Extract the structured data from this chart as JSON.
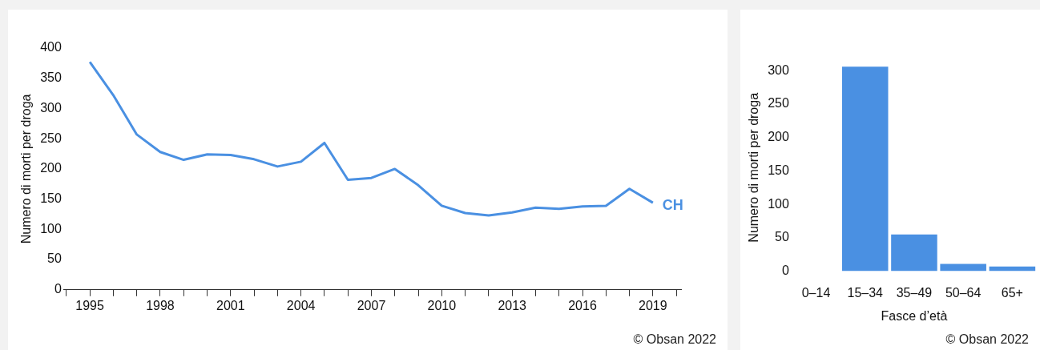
{
  "chart_data": [
    {
      "type": "line",
      "ylabel": "Numero di morti per droga",
      "x": [
        1995,
        1996,
        1997,
        1998,
        1999,
        2000,
        2001,
        2002,
        2003,
        2004,
        2005,
        2006,
        2007,
        2008,
        2009,
        2010,
        2011,
        2012,
        2013,
        2014,
        2015,
        2016,
        2017,
        2018,
        2019
      ],
      "series": [
        {
          "name": "CH",
          "color": "#4a90e2",
          "values": [
            377,
            322,
            257,
            228,
            215,
            224,
            223,
            216,
            204,
            212,
            243,
            182,
            185,
            200,
            173,
            139,
            127,
            123,
            128,
            136,
            134,
            138,
            139,
            167,
            144
          ]
        }
      ],
      "xlim": [
        1993.9,
        2020.2
      ],
      "xticks": [
        {
          "value": 1994,
          "label": null
        },
        1995,
        {
          "value": 1996,
          "label": null
        },
        {
          "value": 1997,
          "label": null
        },
        1998,
        {
          "value": 1999,
          "label": null
        },
        {
          "value": 2000,
          "label": null
        },
        2001,
        {
          "value": 2002,
          "label": null
        },
        {
          "value": 2003,
          "label": null
        },
        2004,
        {
          "value": 2005,
          "label": null
        },
        {
          "value": 2006,
          "label": null
        },
        2007,
        {
          "value": 2008,
          "label": null
        },
        {
          "value": 2009,
          "label": null
        },
        2010,
        {
          "value": 2011,
          "label": null
        },
        {
          "value": 2012,
          "label": null
        },
        2013,
        {
          "value": 2014,
          "label": null
        },
        {
          "value": 2015,
          "label": null
        },
        2016,
        {
          "value": 2017,
          "label": null
        },
        {
          "value": 2018,
          "label": null
        },
        2019,
        {
          "value": 2020,
          "label": null
        }
      ],
      "ylim": [
        0,
        400
      ],
      "yticks": [
        0,
        50,
        100,
        150,
        200,
        250,
        300,
        350,
        400
      ],
      "grid": false,
      "legend": false,
      "marker": "none",
      "line_style": "solid",
      "annotations": [
        "© Obsan 2022"
      ]
    },
    {
      "type": "bar",
      "ylabel": "Numero di morti per droga",
      "xlabel": "Fasce d’età",
      "categories": [
        "0–14",
        "15–34",
        "35–49",
        "50–64",
        "65+"
      ],
      "values": [
        0,
        306,
        55,
        11,
        7
      ],
      "color": "#4a90e2",
      "ylim": [
        0,
        310
      ],
      "yticks": [
        0,
        50,
        100,
        150,
        200,
        250,
        300
      ],
      "grid": false,
      "legend": false,
      "annotations": [
        "© Obsan 2022"
      ]
    }
  ]
}
